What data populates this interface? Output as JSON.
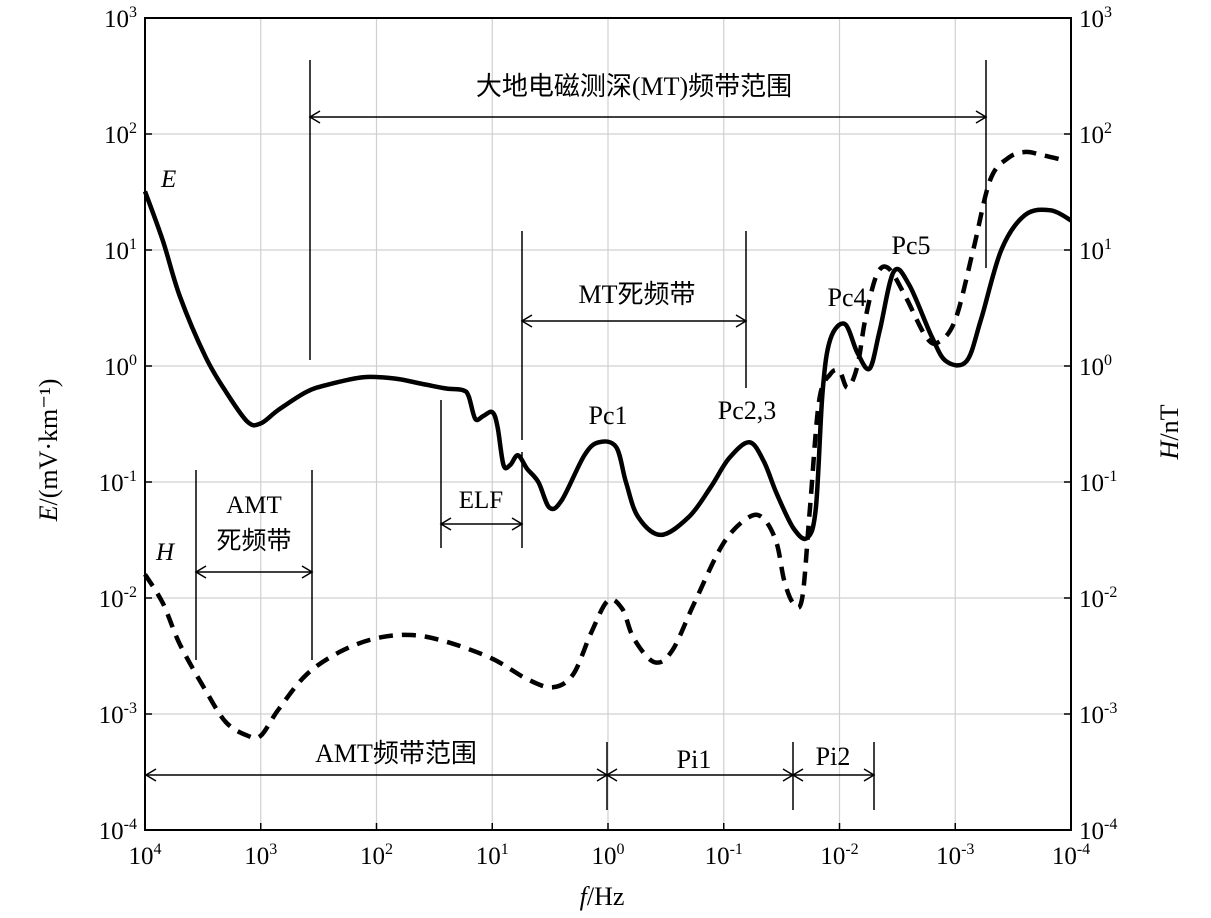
{
  "chart_data": {
    "type": "line",
    "xlabel": {
      "italic": "f",
      "rest": "/Hz"
    },
    "ylabel_left": {
      "italic": "E",
      "rest": "/(mV·km⁻¹)"
    },
    "ylabel_right": {
      "italic": "H",
      "rest": "/nT"
    },
    "x_scale": "log",
    "x_reversed": true,
    "xlim": [
      10000,
      0.0001
    ],
    "ylim": [
      0.0001,
      1000
    ],
    "x_ticks": [
      {
        "base": "10",
        "exp": "4"
      },
      {
        "base": "10",
        "exp": "3"
      },
      {
        "base": "10",
        "exp": "2"
      },
      {
        "base": "10",
        "exp": "1"
      },
      {
        "base": "10",
        "exp": "0"
      },
      {
        "base": "10",
        "exp": "-1"
      },
      {
        "base": "10",
        "exp": "-2"
      },
      {
        "base": "10",
        "exp": "-3"
      },
      {
        "base": "10",
        "exp": "-4"
      }
    ],
    "y_ticks": [
      {
        "base": "10",
        "exp": "3"
      },
      {
        "base": "10",
        "exp": "2"
      },
      {
        "base": "10",
        "exp": "1"
      },
      {
        "base": "10",
        "exp": "0"
      },
      {
        "base": "10",
        "exp": "-1"
      },
      {
        "base": "10",
        "exp": "-2"
      },
      {
        "base": "10",
        "exp": "-3"
      },
      {
        "base": "10",
        "exp": "-4"
      }
    ],
    "grid": true,
    "series": [
      {
        "name": "E",
        "style": "solid",
        "color": "#000000",
        "points": [
          [
            10000,
            32
          ],
          [
            7000,
            12
          ],
          [
            5000,
            4
          ],
          [
            3000,
            1.2
          ],
          [
            2000,
            0.6
          ],
          [
            1300,
            0.33
          ],
          [
            1000,
            0.32
          ],
          [
            700,
            0.42
          ],
          [
            400,
            0.6
          ],
          [
            250,
            0.7
          ],
          [
            130,
            0.8
          ],
          [
            70,
            0.78
          ],
          [
            40,
            0.7
          ],
          [
            25,
            0.64
          ],
          [
            18,
            0.62
          ],
          [
            16,
            0.55
          ],
          [
            14,
            0.35
          ],
          [
            12,
            0.37
          ],
          [
            10,
            0.4
          ],
          [
            9,
            0.3
          ],
          [
            8,
            0.14
          ],
          [
            7,
            0.14
          ],
          [
            6,
            0.17
          ],
          [
            5,
            0.13
          ],
          [
            4,
            0.1
          ],
          [
            3.2,
            0.06
          ],
          [
            2.5,
            0.07
          ],
          [
            1.6,
            0.17
          ],
          [
            1.2,
            0.22
          ],
          [
            0.85,
            0.2
          ],
          [
            0.7,
            0.1
          ],
          [
            0.55,
            0.05
          ],
          [
            0.35,
            0.035
          ],
          [
            0.2,
            0.05
          ],
          [
            0.13,
            0.09
          ],
          [
            0.09,
            0.16
          ],
          [
            0.06,
            0.22
          ],
          [
            0.045,
            0.15
          ],
          [
            0.035,
            0.08
          ],
          [
            0.025,
            0.04
          ],
          [
            0.019,
            0.033
          ],
          [
            0.016,
            0.06
          ],
          [
            0.014,
            0.6
          ],
          [
            0.012,
            1.7
          ],
          [
            0.009,
            2.3
          ],
          [
            0.007,
            1.3
          ],
          [
            0.0055,
            0.95
          ],
          [
            0.0045,
            2.0
          ],
          [
            0.0034,
            6.5
          ],
          [
            0.0025,
            5.0
          ],
          [
            0.0016,
            1.8
          ],
          [
            0.0012,
            1.1
          ],
          [
            0.0008,
            1.1
          ],
          [
            0.0006,
            2.5
          ],
          [
            0.0004,
            10
          ],
          [
            0.00025,
            20
          ],
          [
            0.00015,
            22
          ],
          [
            0.0001,
            18
          ]
        ]
      },
      {
        "name": "H",
        "style": "dashed",
        "color": "#000000",
        "points": [
          [
            10000,
            0.016
          ],
          [
            7000,
            0.009
          ],
          [
            5000,
            0.004
          ],
          [
            3000,
            0.0016
          ],
          [
            2000,
            0.00085
          ],
          [
            1300,
            0.00065
          ],
          [
            1000,
            0.00065
          ],
          [
            700,
            0.0011
          ],
          [
            400,
            0.0022
          ],
          [
            200,
            0.0035
          ],
          [
            100,
            0.0045
          ],
          [
            50,
            0.0048
          ],
          [
            25,
            0.0042
          ],
          [
            10,
            0.003
          ],
          [
            5,
            0.002
          ],
          [
            3,
            0.0017
          ],
          [
            2,
            0.0022
          ],
          [
            1.4,
            0.005
          ],
          [
            1.0,
            0.0095
          ],
          [
            0.75,
            0.008
          ],
          [
            0.6,
            0.0045
          ],
          [
            0.4,
            0.0028
          ],
          [
            0.28,
            0.0035
          ],
          [
            0.18,
            0.009
          ],
          [
            0.1,
            0.03
          ],
          [
            0.06,
            0.05
          ],
          [
            0.045,
            0.048
          ],
          [
            0.035,
            0.03
          ],
          [
            0.03,
            0.014
          ],
          [
            0.025,
            0.009
          ],
          [
            0.021,
            0.01
          ],
          [
            0.018,
            0.06
          ],
          [
            0.015,
            0.5
          ],
          [
            0.012,
            0.85
          ],
          [
            0.01,
            0.9
          ],
          [
            0.0085,
            0.65
          ],
          [
            0.007,
            1.0
          ],
          [
            0.006,
            2.5
          ],
          [
            0.0048,
            6.0
          ],
          [
            0.0038,
            7.0
          ],
          [
            0.0027,
            4.0
          ],
          [
            0.0018,
            1.8
          ],
          [
            0.0014,
            1.6
          ],
          [
            0.001,
            2.5
          ],
          [
            0.0007,
            10
          ],
          [
            0.0005,
            40
          ],
          [
            0.00035,
            62
          ],
          [
            0.00025,
            70
          ],
          [
            0.00018,
            66
          ],
          [
            0.00012,
            60
          ]
        ]
      }
    ],
    "annotations": {
      "e_label": "E",
      "h_label": "H",
      "mt_range": "大地电磁测深(MT)频带范围",
      "mt_dead_band": "MT死频带",
      "amt_dead_line1": "AMT",
      "amt_dead_line2": "死频带",
      "elf": "ELF",
      "amt_range": "AMT频带范围",
      "pi1": "Pi1",
      "pi2": "Pi2",
      "pc1": "Pc1",
      "pc23": "Pc2,3",
      "pc4": "Pc4",
      "pc5": "Pc5"
    }
  }
}
